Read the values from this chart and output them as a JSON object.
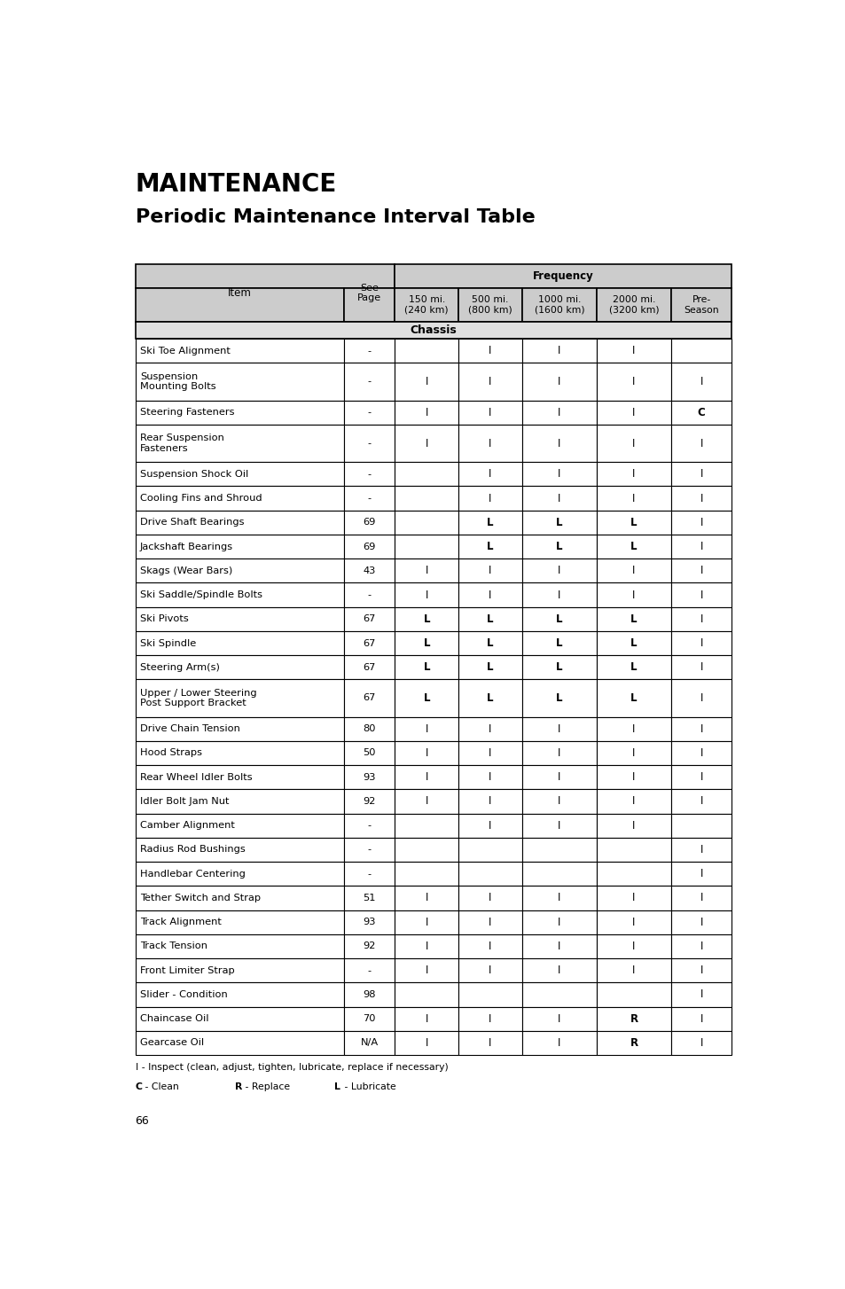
{
  "title1": "MAINTENANCE",
  "title2": "Periodic Maintenance Interval Table",
  "frequency_label": "Frequency",
  "chassis_label": "Chassis",
  "rows": [
    [
      "Ski Toe Alignment",
      "-",
      "",
      "I",
      "I",
      "I",
      ""
    ],
    [
      "Suspension\nMounting Bolts",
      "-",
      "I",
      "I",
      "I",
      "I",
      "I"
    ],
    [
      "Steering Fasteners",
      "-",
      "I",
      "I",
      "I",
      "I",
      "C"
    ],
    [
      "Rear Suspension\nFasteners",
      "-",
      "I",
      "I",
      "I",
      "I",
      "I"
    ],
    [
      "Suspension Shock Oil",
      "-",
      "",
      "I",
      "I",
      "I",
      "I"
    ],
    [
      "Cooling Fins and Shroud",
      "-",
      "",
      "I",
      "I",
      "I",
      "I"
    ],
    [
      "Drive Shaft Bearings",
      "69",
      "",
      "L",
      "L",
      "L",
      "I"
    ],
    [
      "Jackshaft Bearings",
      "69",
      "",
      "L",
      "L",
      "L",
      "I"
    ],
    [
      "Skags (Wear Bars)",
      "43",
      "I",
      "I",
      "I",
      "I",
      "I"
    ],
    [
      "Ski Saddle/Spindle Bolts",
      "-",
      "I",
      "I",
      "I",
      "I",
      "I"
    ],
    [
      "Ski Pivots",
      "67",
      "L",
      "L",
      "L",
      "L",
      "I"
    ],
    [
      "Ski Spindle",
      "67",
      "L",
      "L",
      "L",
      "L",
      "I"
    ],
    [
      "Steering Arm(s)",
      "67",
      "L",
      "L",
      "L",
      "L",
      "I"
    ],
    [
      "Upper / Lower Steering\nPost Support Bracket",
      "67",
      "L",
      "L",
      "L",
      "L",
      "I"
    ],
    [
      "Drive Chain Tension",
      "80",
      "I",
      "I",
      "I",
      "I",
      "I"
    ],
    [
      "Hood Straps",
      "50",
      "I",
      "I",
      "I",
      "I",
      "I"
    ],
    [
      "Rear Wheel Idler Bolts",
      "93",
      "I",
      "I",
      "I",
      "I",
      "I"
    ],
    [
      "Idler Bolt Jam Nut",
      "92",
      "I",
      "I",
      "I",
      "I",
      "I"
    ],
    [
      "Camber Alignment",
      "-",
      "",
      "I",
      "I",
      "I",
      ""
    ],
    [
      "Radius Rod Bushings",
      "-",
      "",
      "",
      "",
      "",
      "I"
    ],
    [
      "Handlebar Centering",
      "-",
      "",
      "",
      "",
      "",
      "I"
    ],
    [
      "Tether Switch and Strap",
      "51",
      "I",
      "I",
      "I",
      "I",
      "I"
    ],
    [
      "Track Alignment",
      "93",
      "I",
      "I",
      "I",
      "I",
      "I"
    ],
    [
      "Track Tension",
      "92",
      "I",
      "I",
      "I",
      "I",
      "I"
    ],
    [
      "Front Limiter Strap",
      "-",
      "I",
      "I",
      "I",
      "I",
      "I"
    ],
    [
      "Slider - Condition",
      "98",
      "",
      "",
      "",
      "",
      "I"
    ],
    [
      "Chaincase Oil",
      "70",
      "I",
      "I",
      "I",
      "R",
      "I"
    ],
    [
      "Gearcase Oil",
      "N/A",
      "I",
      "I",
      "I",
      "R",
      "I"
    ]
  ],
  "sub_headers": [
    "150 mi.\n(240 km)",
    "500 mi.\n(800 km)",
    "1000 mi.\n(1600 km)",
    "2000 mi.\n(3200 km)",
    "Pre-\nSeason"
  ],
  "footer_line1": "I - Inspect (clean, adjust, tighten, lubricate, replace if necessary)",
  "footer_line2_c": "C",
  "footer_line2_clean": " - Clean",
  "footer_line2_r": "R",
  "footer_line2_replace": " - Replace",
  "footer_line2_l": "L",
  "footer_line2_lub": " - Lubricate",
  "page_number": "66",
  "header_bg": "#cccccc",
  "chassis_bg": "#e0e0e0",
  "bold_vals": [
    "L",
    "R",
    "C"
  ],
  "col_props": [
    0.338,
    0.083,
    0.103,
    0.103,
    0.121,
    0.121,
    0.098
  ],
  "tall_rows": [
    1,
    3,
    13
  ],
  "title1_fontsize": 20,
  "title2_fontsize": 16,
  "cell_fontsize": 8.2,
  "header_fontsize": 8.5,
  "chassis_fontsize": 9.0
}
